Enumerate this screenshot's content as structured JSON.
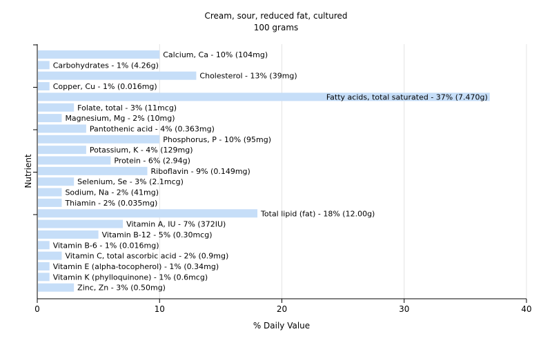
{
  "chart_data": {
    "type": "bar",
    "orientation": "horizontal",
    "title": "Cream, sour, reduced fat, cultured",
    "subtitle": "100 grams",
    "xlabel": "% Daily Value",
    "ylabel": "Nutrient",
    "xlim": [
      0,
      40
    ],
    "x_ticks": [
      0,
      10,
      20,
      30,
      40
    ],
    "grid": "vertical",
    "bar_color": "#c6def8",
    "categories": [
      "Calcium, Ca",
      "Carbohydrates",
      "Cholesterol",
      "Copper, Cu",
      "Fatty acids, total saturated",
      "Folate, total",
      "Magnesium, Mg",
      "Pantothenic acid",
      "Phosphorus, P",
      "Potassium, K",
      "Protein",
      "Riboflavin",
      "Selenium, Se",
      "Sodium, Na",
      "Thiamin",
      "Total lipid (fat)",
      "Vitamin A, IU",
      "Vitamin B-12",
      "Vitamin B-6",
      "Vitamin C, total ascorbic acid",
      "Vitamin E (alpha-tocopherol)",
      "Vitamin K (phylloquinone)",
      "Zinc, Zn"
    ],
    "values": [
      10,
      1,
      13,
      1,
      37,
      3,
      2,
      4,
      10,
      4,
      6,
      9,
      3,
      2,
      2,
      18,
      7,
      5,
      1,
      2,
      1,
      1,
      3
    ],
    "labels": [
      "Calcium, Ca - 10% (104mg)",
      "Carbohydrates - 1% (4.26g)",
      "Cholesterol - 13% (39mg)",
      "Copper, Cu - 1% (0.016mg)",
      "Fatty acids, total saturated - 37% (7.470g)",
      "Folate, total - 3% (11mcg)",
      "Magnesium, Mg - 2% (10mg)",
      "Pantothenic acid - 4% (0.363mg)",
      "Phosphorus, P - 10% (95mg)",
      "Potassium, K - 4% (129mg)",
      "Protein - 6% (2.94g)",
      "Riboflavin - 9% (0.149mg)",
      "Selenium, Se - 3% (2.1mcg)",
      "Sodium, Na - 2% (41mg)",
      "Thiamin - 2% (0.035mg)",
      "Total lipid (fat) - 18% (12.00g)",
      "Vitamin A, IU - 7% (372IU)",
      "Vitamin B-12 - 5% (0.30mcg)",
      "Vitamin B-6 - 1% (0.016mg)",
      "Vitamin C, total ascorbic acid - 2% (0.9mg)",
      "Vitamin E (alpha-tocopherol) - 1% (0.34mg)",
      "Vitamin K (phylloquinone) - 1% (0.6mcg)",
      "Zinc, Zn - 3% (0.50mg)"
    ]
  }
}
